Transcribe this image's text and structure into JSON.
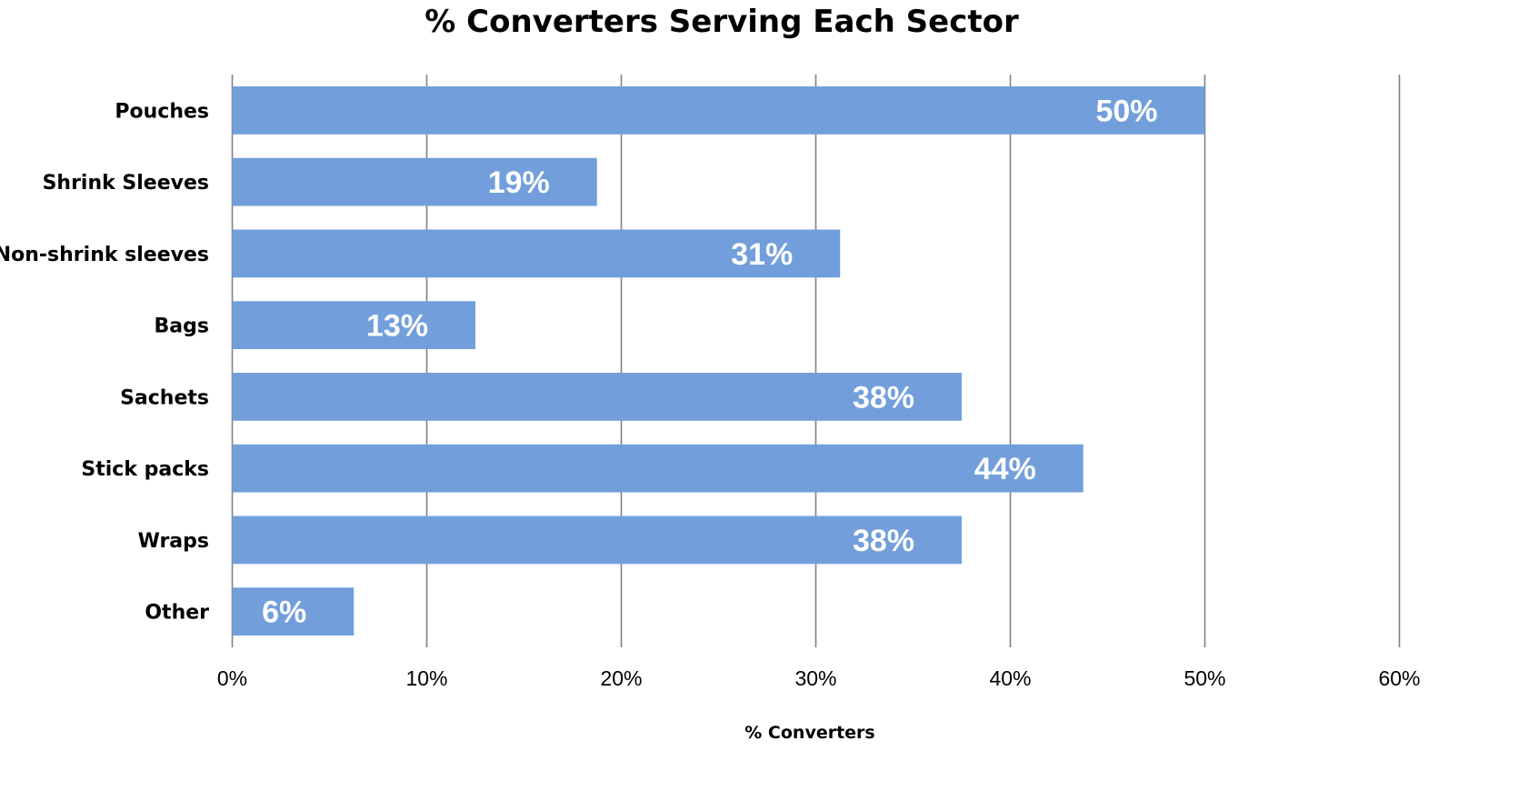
{
  "chart_data": {
    "type": "bar",
    "orientation": "horizontal",
    "title": "% Converters Serving Each Sector",
    "xlabel": "% Converters",
    "ylabel": "",
    "categories": [
      "Pouches",
      "Shrink Sleeves",
      "Non-shrink sleeves",
      "Bags",
      "Sachets",
      "Stick packs",
      "Wraps",
      "Other"
    ],
    "values": [
      50,
      18.75,
      31.25,
      12.5,
      37.5,
      43.75,
      37.5,
      6.25
    ],
    "data_labels": [
      "50%",
      "19%",
      "31%",
      "13%",
      "38%",
      "44%",
      "38%",
      "6%"
    ],
    "xlim": [
      0,
      60
    ],
    "x_ticks": [
      0,
      10,
      20,
      30,
      40,
      50,
      60
    ],
    "x_tick_labels": [
      "0%",
      "10%",
      "20%",
      "30%",
      "40%",
      "50%",
      "60%"
    ],
    "grid": "vertical",
    "legend": "none",
    "colors": {
      "bar": "#729fdb",
      "gridline": "#808080",
      "data_label": "#ffffff"
    }
  }
}
